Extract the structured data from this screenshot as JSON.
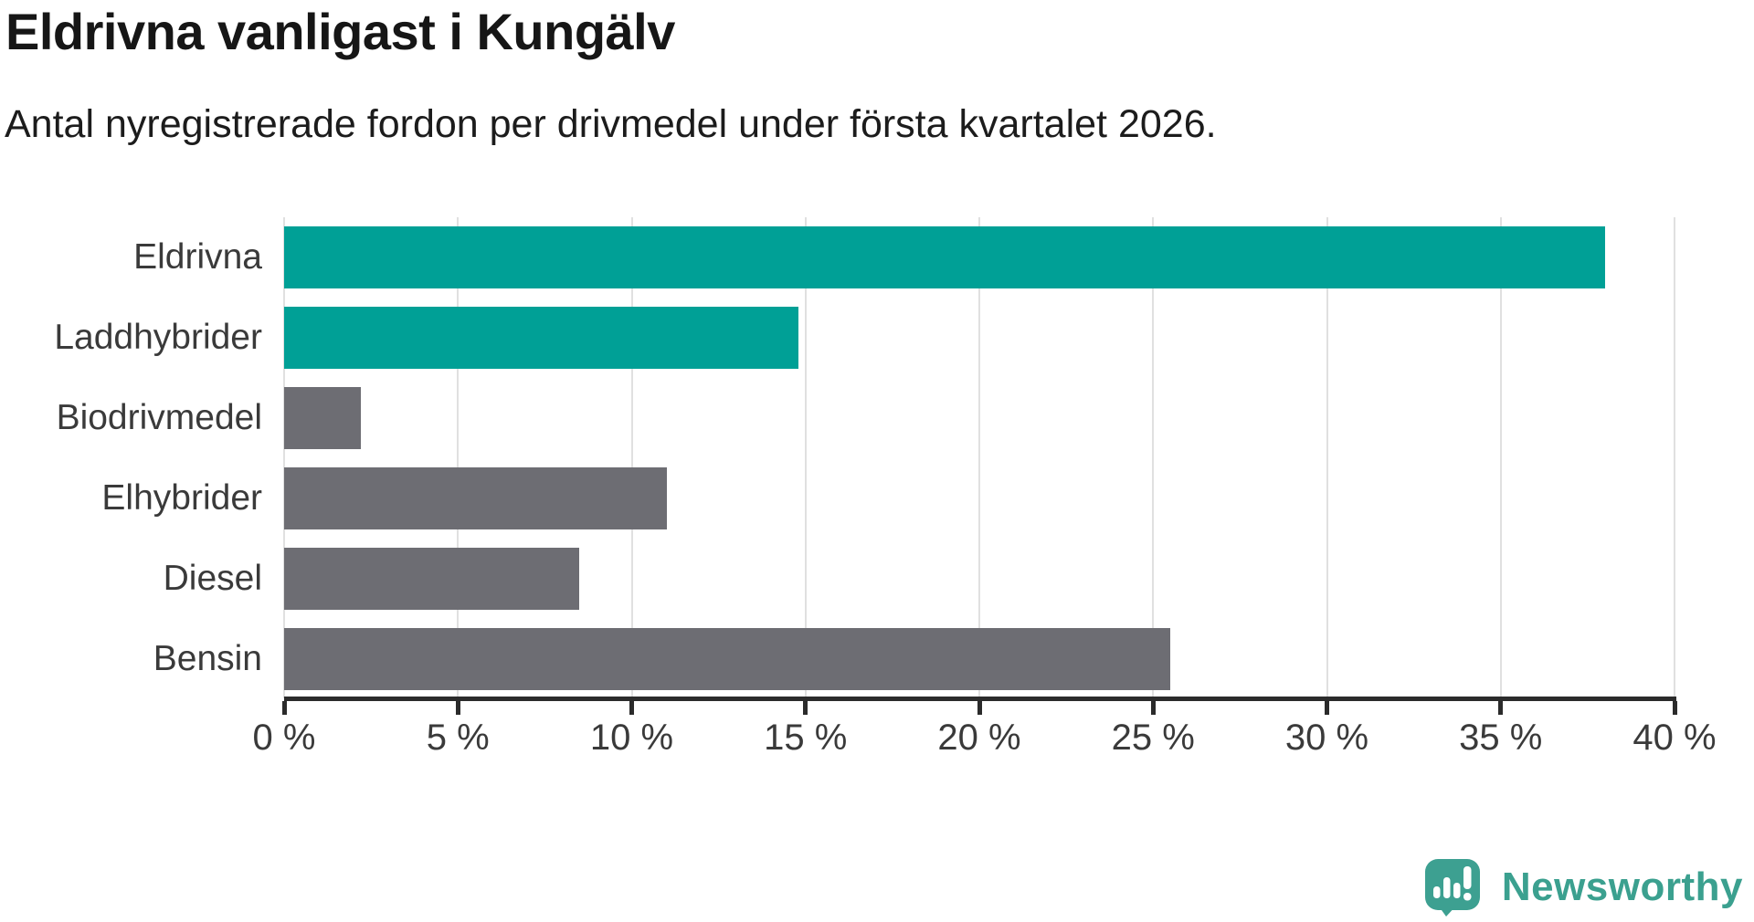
{
  "title": "Eldrivna vanligast i Kungälv",
  "subtitle": "Antal nyregistrerade fordon per drivmedel under första kvartalet 2026.",
  "chart_data": {
    "type": "bar",
    "orientation": "horizontal",
    "categories": [
      "Eldrivna",
      "Laddhybrider",
      "Biodrivmedel",
      "Elhybrider",
      "Diesel",
      "Bensin"
    ],
    "values": [
      38.0,
      14.8,
      2.2,
      11.0,
      8.5,
      25.5
    ],
    "unit": "%",
    "xlim": [
      0,
      40
    ],
    "x_tick_step": 5,
    "x_tick_labels": [
      "0 %",
      "5 %",
      "10 %",
      "15 %",
      "20 %",
      "25 %",
      "30 %",
      "35 %",
      "40 %"
    ],
    "grid": true,
    "legend": "none",
    "highlight_color": "#00a096",
    "default_color": "#6d6d73",
    "bar_colors": [
      "#00a096",
      "#00a096",
      "#6d6d73",
      "#6d6d73",
      "#6d6d73",
      "#6d6d73"
    ]
  },
  "colors": {
    "background": "#ffffff",
    "gridline": "#e0e0e0",
    "axis": "#2b2b2b",
    "label_text": "#3a3a3a",
    "title_text": "#161616",
    "brand_teal": "#3ba08f"
  },
  "branding": {
    "name": "Newsworthy",
    "icon": "newsworthy-speech-bubble-chart-icon"
  }
}
